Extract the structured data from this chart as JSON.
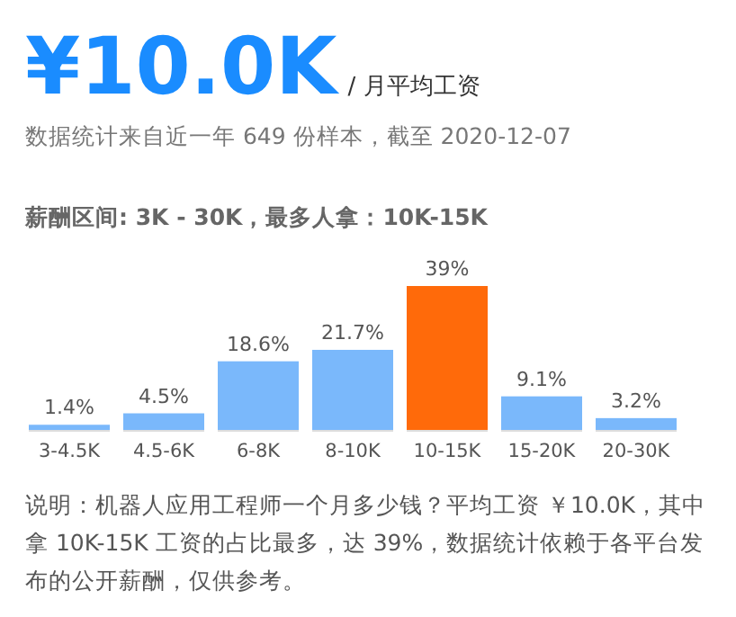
{
  "chart_data": {
    "type": "bar",
    "title": "¥10.0K",
    "subtitle": "/ 月平均工资",
    "annotations": [
      "数据统计来自近一年 649 份样本，截至 2020-12-07",
      "薪酬区间: 3K - 30K，最多人拿：10K-15K",
      "说明：机器人应用工程师一个月多少钱？平均工资 ￥10.0K，其中拿 10K-15K 工资的占比最多，达 39%，数据统计依赖于各平台发布的公开薪酬，仅供参考。"
    ],
    "categories": [
      "3-4.5K",
      "4.5-6K",
      "6-8K",
      "8-10K",
      "10-15K",
      "15-20K",
      "20-30K"
    ],
    "values": [
      1.4,
      4.5,
      18.6,
      21.7,
      39,
      9.1,
      3.2
    ],
    "value_labels": [
      "1.4%",
      "4.5%",
      "18.6%",
      "21.7%",
      "39%",
      "9.1%",
      "3.2%"
    ],
    "colors": [
      "#7ab8fb",
      "#7ab8fb",
      "#7ab8fb",
      "#7ab8fb",
      "#ff6a0a",
      "#7ab8fb",
      "#7ab8fb"
    ]
  }
}
